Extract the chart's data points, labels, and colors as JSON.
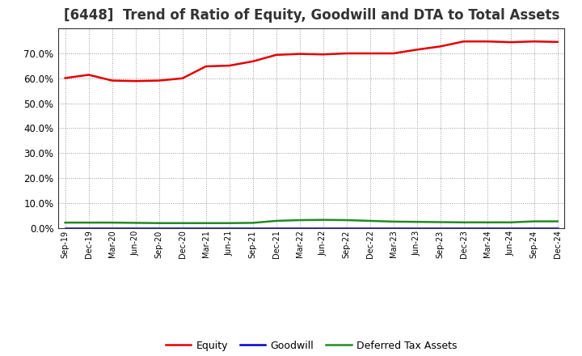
{
  "title": "[6448]  Trend of Ratio of Equity, Goodwill and DTA to Total Assets",
  "x_labels": [
    "Sep-19",
    "Dec-19",
    "Mar-20",
    "Jun-20",
    "Sep-20",
    "Dec-20",
    "Mar-21",
    "Jun-21",
    "Sep-21",
    "Dec-21",
    "Mar-22",
    "Jun-22",
    "Sep-22",
    "Dec-22",
    "Mar-23",
    "Jun-23",
    "Sep-23",
    "Dec-23",
    "Mar-24",
    "Jun-24",
    "Sep-24",
    "Dec-24"
  ],
  "equity": [
    0.601,
    0.614,
    0.591,
    0.589,
    0.591,
    0.6,
    0.648,
    0.651,
    0.668,
    0.694,
    0.698,
    0.696,
    0.7,
    0.7,
    0.7,
    0.715,
    0.728,
    0.748,
    0.748,
    0.745,
    0.748,
    0.746
  ],
  "goodwill": [
    0.0,
    0.0,
    0.0,
    0.0,
    0.0,
    0.0,
    0.0,
    0.0,
    0.0,
    0.0,
    0.0,
    0.0,
    0.0,
    0.0,
    0.0,
    0.0,
    0.0,
    0.0,
    0.0,
    0.0,
    0.0,
    0.0
  ],
  "dta": [
    0.021,
    0.021,
    0.021,
    0.02,
    0.019,
    0.019,
    0.019,
    0.019,
    0.02,
    0.028,
    0.031,
    0.032,
    0.031,
    0.028,
    0.025,
    0.024,
    0.023,
    0.022,
    0.022,
    0.022,
    0.026,
    0.026
  ],
  "equity_color": "#e60000",
  "goodwill_color": "#0000cc",
  "dta_color": "#228B22",
  "background_color": "#ffffff",
  "grid_color": "#aaaaaa",
  "ylim": [
    0.0,
    0.8
  ],
  "yticks": [
    0.0,
    0.1,
    0.2,
    0.3,
    0.4,
    0.5,
    0.6,
    0.7
  ],
  "title_fontsize": 12,
  "legend_labels": [
    "Equity",
    "Goodwill",
    "Deferred Tax Assets"
  ]
}
